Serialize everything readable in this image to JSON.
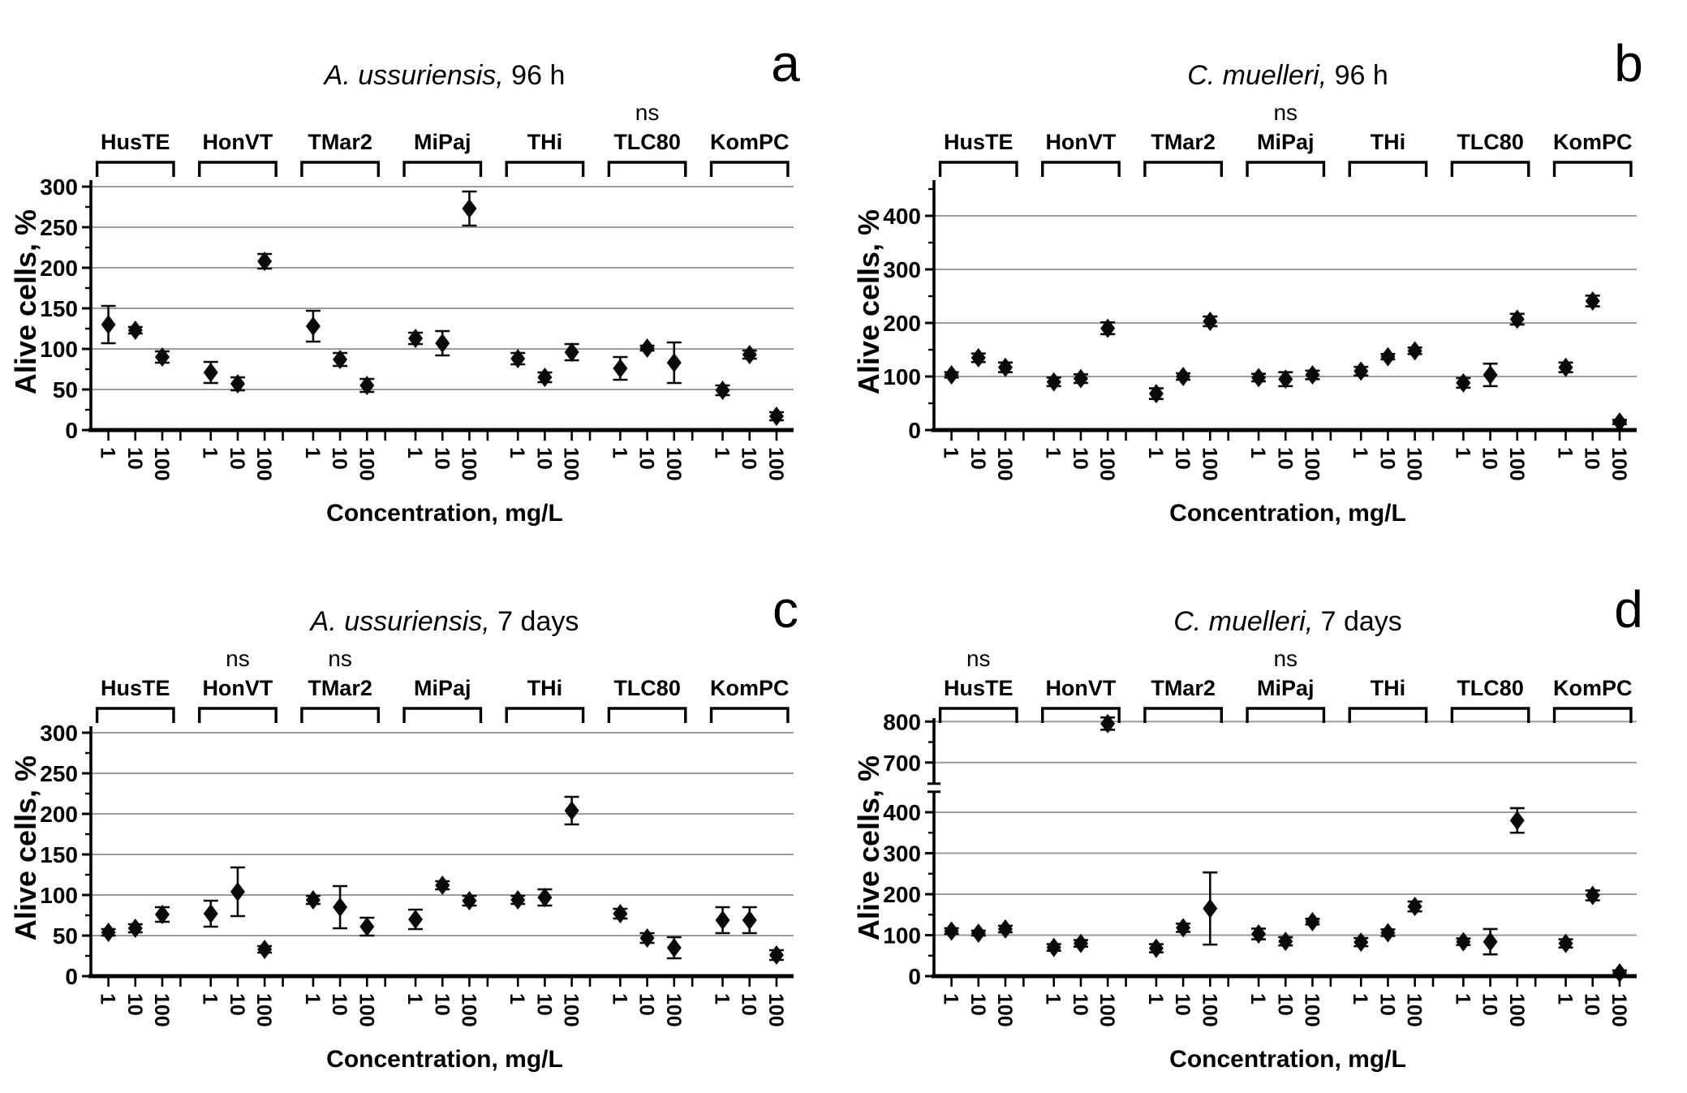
{
  "figure": {
    "ylabel": "Alive cells, %",
    "xlabel": "Concentration, mg/L",
    "x_tick_labels": [
      "1",
      "10",
      "100"
    ],
    "ns_label": "ns",
    "colors": {
      "marker": "#0a0a0a",
      "grid": "#9c9c9c",
      "axis": "#000000",
      "text": "#000000",
      "background": "#ffffff"
    }
  },
  "chart_data": [
    {
      "type": "scatter",
      "panel_label": "a",
      "title_italic": "A. ussuriensis,",
      "title_rest": " 96 h",
      "xlabel": "Concentration, mg/L",
      "ylabel": "Alive cells, %",
      "ylim": [
        0,
        310
      ],
      "yticks": [
        0,
        50,
        100,
        150,
        200,
        250,
        300
      ],
      "yminors": [
        25,
        75,
        125,
        175,
        225,
        275
      ],
      "x_categories": [
        "1",
        "10",
        "100"
      ],
      "legend": "none",
      "grid": "horizontal",
      "ns_groups": [
        "TLC80"
      ],
      "groups": [
        {
          "name": "HusTE",
          "values": [
            130,
            123,
            90
          ],
          "errors": [
            23,
            4,
            7
          ]
        },
        {
          "name": "HonVT",
          "values": [
            71,
            57,
            208
          ],
          "errors": [
            13,
            8,
            9
          ]
        },
        {
          "name": "TMar2",
          "values": [
            128,
            87,
            55
          ],
          "errors": [
            19,
            8,
            8
          ]
        },
        {
          "name": "MiPaj",
          "values": [
            113,
            107,
            273
          ],
          "errors": [
            7,
            15,
            21
          ]
        },
        {
          "name": "THi",
          "values": [
            88,
            65,
            96
          ],
          "errors": [
            7,
            6,
            10
          ]
        },
        {
          "name": "TLC80",
          "values": [
            76,
            101,
            83
          ],
          "errors": [
            14,
            3,
            25
          ]
        },
        {
          "name": "KomPC",
          "values": [
            49,
            93,
            17
          ],
          "errors": [
            6,
            5,
            5
          ]
        }
      ]
    },
    {
      "type": "scatter",
      "panel_label": "b",
      "title_italic": "C. muelleri,",
      "title_rest": " 96 h",
      "xlabel": "Concentration, mg/L",
      "ylabel": "Alive cells, %",
      "ylim": [
        0,
        460
      ],
      "yticks": [
        0,
        100,
        200,
        300,
        400
      ],
      "yminors": [
        50,
        150,
        250,
        350,
        450
      ],
      "x_categories": [
        "1",
        "10",
        "100"
      ],
      "legend": "none",
      "grid": "horizontal",
      "ns_groups": [
        "MiPaj"
      ],
      "groups": [
        {
          "name": "HusTE",
          "values": [
            103,
            135,
            117
          ],
          "errors": [
            5,
            8,
            9
          ]
        },
        {
          "name": "HonVT",
          "values": [
            90,
            96,
            190
          ],
          "errors": [
            8,
            8,
            11
          ]
        },
        {
          "name": "TMar2",
          "values": [
            68,
            100,
            203
          ],
          "errors": [
            10,
            6,
            9
          ]
        },
        {
          "name": "MiPaj",
          "values": [
            98,
            95,
            103
          ],
          "errors": [
            7,
            13,
            8
          ]
        },
        {
          "name": "THi",
          "values": [
            110,
            137,
            148
          ],
          "errors": [
            8,
            5,
            6
          ]
        },
        {
          "name": "TLC80",
          "values": [
            88,
            103,
            207
          ],
          "errors": [
            9,
            21,
            10
          ]
        },
        {
          "name": "KomPC",
          "values": [
            117,
            241,
            15
          ],
          "errors": [
            9,
            10,
            4
          ]
        }
      ]
    },
    {
      "type": "scatter",
      "panel_label": "c",
      "title_italic": "A. ussuriensis,",
      "title_rest": " 7 days",
      "xlabel": "Concentration, mg/L",
      "ylabel": "Alive cells, %",
      "ylim": [
        0,
        310
      ],
      "yticks": [
        0,
        50,
        100,
        150,
        200,
        250,
        300
      ],
      "yminors": [
        25,
        75,
        125,
        175,
        225,
        275
      ],
      "x_categories": [
        "1",
        "10",
        "100"
      ],
      "legend": "none",
      "grid": "horizontal",
      "ns_groups": [
        "HonVT",
        "TMar2"
      ],
      "groups": [
        {
          "name": "HusTE",
          "values": [
            54,
            59,
            76
          ],
          "errors": [
            4,
            5,
            9
          ]
        },
        {
          "name": "HonVT",
          "values": [
            77,
            104,
            33
          ],
          "errors": [
            16,
            30,
            4
          ]
        },
        {
          "name": "TMar2",
          "values": [
            94,
            85,
            61
          ],
          "errors": [
            5,
            26,
            11
          ]
        },
        {
          "name": "MiPaj",
          "values": [
            70,
            112,
            93
          ],
          "errors": [
            12,
            5,
            6
          ]
        },
        {
          "name": "THi",
          "values": [
            94,
            97,
            204
          ],
          "errors": [
            5,
            10,
            17
          ]
        },
        {
          "name": "TLC80",
          "values": [
            77,
            47,
            35
          ],
          "errors": [
            6,
            6,
            13
          ]
        },
        {
          "name": "KomPC",
          "values": [
            69,
            69,
            26
          ],
          "errors": [
            16,
            16,
            6
          ]
        }
      ]
    },
    {
      "type": "scatter",
      "panel_label": "d",
      "title_italic": "C. muelleri,",
      "title_rest": " 7 days",
      "xlabel": "Concentration, mg/L",
      "ylabel": "Alive cells, %",
      "ylim": [
        0,
        830
      ],
      "axis_break": {
        "lower_max": 450,
        "upper_min": 650
      },
      "yticks": [
        0,
        100,
        200,
        300,
        400,
        700,
        800
      ],
      "yminors": [
        50,
        150,
        250,
        350,
        750
      ],
      "x_categories": [
        "1",
        "10",
        "100"
      ],
      "legend": "none",
      "grid": "horizontal",
      "ns_groups": [
        "HusTE",
        "MiPaj"
      ],
      "groups": [
        {
          "name": "HusTE",
          "values": [
            110,
            105,
            115
          ],
          "errors": [
            7,
            6,
            8
          ]
        },
        {
          "name": "HonVT",
          "values": [
            70,
            80,
            795
          ],
          "errors": [
            8,
            8,
            15
          ]
        },
        {
          "name": "TMar2",
          "values": [
            68,
            118,
            165
          ],
          "errors": [
            10,
            10,
            88
          ]
        },
        {
          "name": "MiPaj",
          "values": [
            103,
            85,
            133
          ],
          "errors": [
            13,
            10,
            7
          ]
        },
        {
          "name": "THi",
          "values": [
            83,
            106,
            170
          ],
          "errors": [
            10,
            8,
            12
          ]
        },
        {
          "name": "TLC80",
          "values": [
            84,
            84,
            380
          ],
          "errors": [
            8,
            31,
            30
          ]
        },
        {
          "name": "KomPC",
          "values": [
            80,
            197,
            8
          ],
          "errors": [
            10,
            12,
            6
          ]
        }
      ]
    }
  ]
}
